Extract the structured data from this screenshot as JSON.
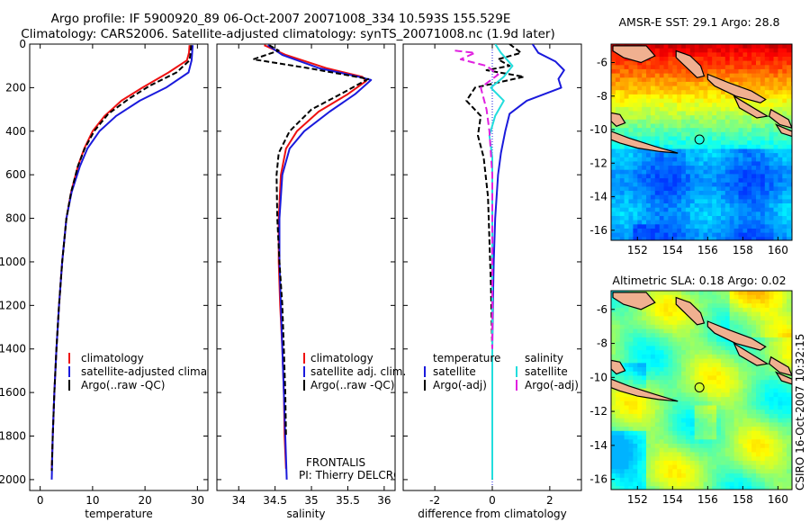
{
  "figure": {
    "title_line1": "Argo profile: IF 5900920_89 06-Oct-2007 20071008_334 10.593S 155.529E",
    "title_line2": "Climatology: CARS2006. Satellite-adjusted climatology: synTS_20071008.nc (1.9d later)",
    "credit": "CSIRO 16-Oct-2007 10:32:15",
    "float_name": "FRONTALIS",
    "pi": "PI: Thierry DELCROIX"
  },
  "colors": {
    "red": "#ee1111",
    "blue": "#1a1adc",
    "black": "#000000",
    "cyan": "#22dddd",
    "magenta": "#e020e0"
  },
  "chart_data": [
    {
      "type": "line",
      "id": "temperature",
      "xlabel": "temperature",
      "ylabel": "",
      "xlim": [
        -2,
        32
      ],
      "ylim": [
        2050,
        0
      ],
      "xticks": [
        0,
        10,
        20,
        30
      ],
      "yticks": [
        0,
        200,
        400,
        600,
        800,
        1000,
        1200,
        1400,
        1600,
        1800,
        2000
      ],
      "legend": [
        "climatology",
        "satellite-adjusted climatology",
        "Argo(..raw -QC)"
      ],
      "series": [
        {
          "name": "climatology",
          "color": "red",
          "dash": "",
          "x": [
            28.5,
            28.4,
            28.0,
            24.5,
            19.5,
            15.5,
            12.3,
            10.0,
            8.4,
            7.2,
            5.9,
            5.0,
            4.2,
            3.6,
            3.1,
            2.7,
            2.4,
            2.2
          ],
          "y": [
            5,
            40,
            75,
            130,
            200,
            260,
            330,
            400,
            480,
            560,
            680,
            800,
            1000,
            1200,
            1400,
            1600,
            1800,
            1950
          ]
        },
        {
          "name": "satellite-adjusted climatology",
          "color": "blue",
          "dash": "",
          "x": [
            29.1,
            29.0,
            28.9,
            28.3,
            24.0,
            19.0,
            14.5,
            11.3,
            9.0,
            7.6,
            6.0,
            5.0,
            4.2,
            3.6,
            3.1,
            2.7,
            2.4,
            2.2
          ],
          "y": [
            5,
            40,
            75,
            130,
            200,
            260,
            330,
            400,
            480,
            560,
            680,
            800,
            1000,
            1200,
            1400,
            1600,
            1800,
            2000
          ]
        },
        {
          "name": "Argo(..raw -QC)",
          "color": "black",
          "dash": "6,3",
          "x": [
            28.8,
            28.7,
            28.5,
            26.0,
            21.0,
            17.0,
            13.0,
            10.3,
            8.5,
            7.2,
            5.9,
            5.0,
            4.2,
            3.6,
            3.1,
            2.7,
            2.4,
            2.2
          ],
          "y": [
            5,
            40,
            75,
            130,
            190,
            250,
            320,
            400,
            480,
            560,
            680,
            800,
            1000,
            1200,
            1400,
            1600,
            1800,
            1960
          ]
        }
      ]
    },
    {
      "type": "line",
      "id": "salinity",
      "xlabel": "salinity",
      "ylabel": "",
      "xlim": [
        33.7,
        36.15
      ],
      "ylim": [
        2050,
        0
      ],
      "xticks": [
        34,
        34.5,
        35,
        35.5,
        36
      ],
      "yticks": [],
      "legend": [
        "climatology",
        "satellite adj. clim.",
        "Argo(..raw -QC)"
      ],
      "series": [
        {
          "name": "climatology",
          "color": "red",
          "dash": "",
          "x": [
            34.35,
            34.65,
            35.2,
            35.7,
            35.75,
            35.5,
            35.1,
            34.8,
            34.65,
            34.58,
            34.55,
            34.55,
            34.57,
            34.6,
            34.62,
            34.63,
            34.65
          ],
          "y": [
            5,
            50,
            110,
            150,
            170,
            230,
            310,
            400,
            480,
            600,
            800,
            1000,
            1200,
            1400,
            1600,
            1800,
            1950
          ]
        },
        {
          "name": "satellite adj. clim.",
          "color": "blue",
          "dash": "",
          "x": [
            34.4,
            34.6,
            35.1,
            35.65,
            35.82,
            35.6,
            35.25,
            34.9,
            34.7,
            34.6,
            34.56,
            34.56,
            34.58,
            34.6,
            34.62,
            34.64,
            34.66
          ],
          "y": [
            5,
            50,
            110,
            150,
            165,
            230,
            310,
            400,
            480,
            600,
            800,
            1000,
            1200,
            1400,
            1600,
            1800,
            2000
          ]
        },
        {
          "name": "Argo(..raw -QC)",
          "color": "black",
          "dash": "6,3",
          "x": [
            34.42,
            34.55,
            34.2,
            34.95,
            35.78,
            35.4,
            35.0,
            34.7,
            34.55,
            34.52,
            34.53,
            34.56,
            34.6,
            34.62,
            34.64,
            34.65
          ],
          "y": [
            5,
            30,
            70,
            110,
            160,
            230,
            300,
            400,
            500,
            600,
            800,
            1000,
            1200,
            1400,
            1600,
            1800
          ]
        }
      ]
    },
    {
      "type": "line",
      "id": "difference",
      "xlabel": "difference from climatology",
      "ylabel": "",
      "xlim": [
        -3.1,
        3.1
      ],
      "ylim": [
        2050,
        0
      ],
      "xticks": [
        -2,
        0,
        2
      ],
      "yticks": [],
      "legend_temperature_title": "temperature",
      "legend_salinity_title": "salinity",
      "legend": [
        "satellite",
        "Argo(-adj)",
        "satellite",
        "Argo(-adj)"
      ],
      "series": [
        {
          "name": "temperature satellite",
          "color": "blue",
          "dash": "",
          "x": [
            1.4,
            1.6,
            2.2,
            2.5,
            2.3,
            2.4,
            1.2,
            0.6,
            0.45,
            0.3,
            0.2,
            0.1,
            0.05,
            0.02,
            0.0,
            0.0,
            0.0,
            0.0
          ],
          "y": [
            0,
            40,
            80,
            120,
            160,
            200,
            260,
            320,
            400,
            500,
            600,
            800,
            1000,
            1200,
            1400,
            1600,
            1800,
            2000
          ]
        },
        {
          "name": "temperature Argo(-adj)",
          "color": "black",
          "dash": "6,3",
          "x": [
            0.6,
            1.0,
            0.2,
            0.6,
            -0.2,
            1.1,
            -0.6,
            -0.9,
            -0.4,
            -0.5,
            -0.3,
            -0.15,
            -0.1,
            -0.05,
            0.0,
            0.0,
            0.0,
            0.0
          ],
          "y": [
            0,
            40,
            70,
            100,
            120,
            150,
            200,
            260,
            330,
            420,
            520,
            700,
            900,
            1100,
            1400,
            1600,
            1800,
            2000
          ]
        },
        {
          "name": "salinity satellite",
          "color": "cyan",
          "dash": "",
          "x": [
            0.1,
            0.3,
            0.7,
            0.4,
            -0.05,
            0.4,
            0.1,
            -0.1,
            0.0,
            0.0,
            0.0,
            0.0,
            0.0,
            0.0,
            0.0,
            0.0,
            0.0
          ],
          "y": [
            0,
            40,
            100,
            150,
            200,
            260,
            330,
            420,
            520,
            650,
            800,
            1000,
            1200,
            1400,
            1600,
            1800,
            2000
          ]
        },
        {
          "name": "salinity Argo(-adj)",
          "color": "magenta",
          "dash": "8,4",
          "x": [
            -1.3,
            -0.6,
            -1.1,
            -0.2,
            0.2,
            -0.4,
            -0.2,
            -0.1,
            0.0,
            0.0,
            0.0,
            0.0,
            0.0
          ],
          "y": [
            30,
            40,
            70,
            100,
            140,
            200,
            300,
            400,
            600,
            800,
            1000,
            1200,
            1400
          ]
        }
      ]
    },
    {
      "type": "heatmap",
      "id": "sst-map",
      "title": "AMSR-E SST: 29.1 Argo: 28.8",
      "xlim": [
        150.5,
        160.8
      ],
      "ylim": [
        -16.6,
        -4.9
      ],
      "xticks": [
        152,
        154,
        156,
        158,
        160
      ],
      "yticks": [
        -6,
        -8,
        -10,
        -12,
        -14,
        -16
      ],
      "argo_position": {
        "lon": 155.53,
        "lat": -10.59
      }
    },
    {
      "type": "heatmap",
      "id": "sla-map",
      "title": "Altimetric SLA: 0.18 Argo: 0.02",
      "xlim": [
        150.5,
        160.8
      ],
      "ylim": [
        -16.6,
        -4.9
      ],
      "xticks": [
        152,
        154,
        156,
        158,
        160
      ],
      "yticks": [
        -6,
        -8,
        -10,
        -12,
        -14,
        -16
      ],
      "argo_position": {
        "lon": 155.53,
        "lat": -10.59
      }
    }
  ]
}
